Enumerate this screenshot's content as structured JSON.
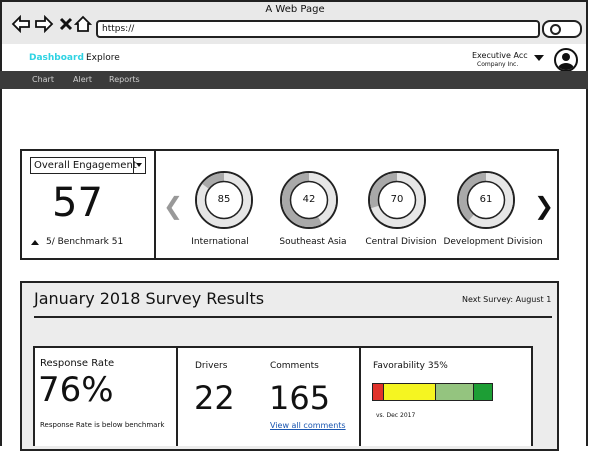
{
  "window": {
    "title": "A Web Page"
  },
  "browser": {
    "url": "https://",
    "icons": [
      "back-icon",
      "forward-icon",
      "close-icon",
      "home-icon",
      "search-icon"
    ]
  },
  "header": {
    "nav": {
      "dashboard": "Dashboard",
      "explore": "Explore"
    },
    "account": {
      "name": "Executive Acc",
      "company": "Company Inc."
    }
  },
  "subnav": {
    "items": [
      "Chart",
      "Alert",
      "Reports"
    ]
  },
  "engagement": {
    "selector": "Overall Engagement",
    "score": "57",
    "benchmark": "5/ Benchmark 51",
    "regions": [
      {
        "value": "85",
        "name": "International",
        "fraction": 0.85
      },
      {
        "value": "42",
        "name": "Southeast Asia",
        "fraction": 0.42
      },
      {
        "value": "70",
        "name": "Central Division",
        "fraction": 0.7
      },
      {
        "value": "61",
        "name": "Development Division",
        "fraction": 0.61
      }
    ]
  },
  "survey": {
    "title": "January 2018 Survey Results",
    "next": "Next Survey: August 1",
    "response_rate": {
      "label": "Response Rate",
      "value": "76%",
      "note": "Response Rate is below benchmark"
    },
    "drivers": {
      "label": "Drivers",
      "value": "22"
    },
    "comments": {
      "label": "Comments",
      "value": "165",
      "link": "View all comments"
    },
    "favorability": {
      "label": "Favorability 35%",
      "vs": "vs. Dec 2017",
      "segments": [
        {
          "color": "#e0322b",
          "share": 0.09
        },
        {
          "color": "#f5f521",
          "share": 0.44
        },
        {
          "color": "#94c47f",
          "share": 0.32
        },
        {
          "color": "#1d9e35",
          "share": 0.15
        }
      ]
    }
  }
}
